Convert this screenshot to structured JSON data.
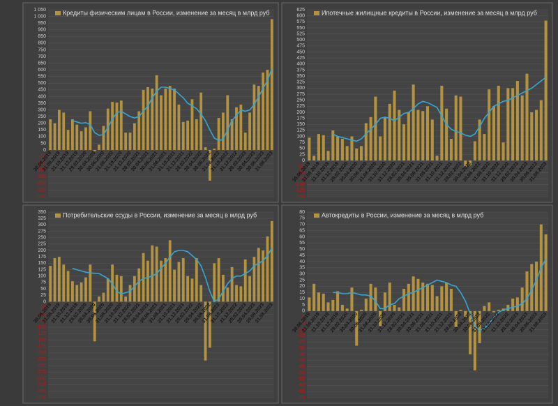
{
  "chart_data": [
    {
      "type": "bar",
      "categories": [
        "30.06.2019",
        null,
        "31.08.2019",
        null,
        "31.10.2019",
        null,
        "31.12.2019",
        null,
        "29.02.2020",
        null,
        "30.04.2020",
        null,
        "30.06.2020",
        null,
        "31.08.2020",
        null,
        "31.10.2020",
        null,
        "31.12.2020",
        null,
        "28.02.2021",
        null,
        "30.04.2021",
        null,
        "30.06.2021",
        null,
        "31.08.2021",
        null,
        "31.10.2021",
        null,
        "31.12.2021",
        null,
        "28.02.2022",
        null,
        "30.04.2022",
        null,
        "30.06.2022",
        null,
        "31.08.2022",
        null,
        "31.10.2022",
        null,
        "31.12.2022",
        null,
        "28.02.2023",
        null,
        "30.04.2023",
        null,
        "30.06.2023",
        null,
        "31.08.2023"
      ],
      "series": [
        {
          "name": "Кредиты физическим лицам  в России, изменение за месяц в млрд руб",
          "color": "#b39240",
          "values": [
            230,
            200,
            300,
            280,
            150,
            230,
            190,
            140,
            170,
            290,
            -10,
            40,
            180,
            310,
            360,
            355,
            370,
            130,
            130,
            200,
            290,
            450,
            470,
            460,
            560,
            410,
            460,
            480,
            460,
            340,
            210,
            220,
            380,
            230,
            430,
            20,
            -230,
            10,
            240,
            280,
            410,
            230,
            320,
            340,
            130,
            280,
            490,
            480,
            580,
            600,
            980
          ]
        }
      ],
      "trend": {
        "color": "#35a7d6",
        "values": [
          null,
          null,
          null,
          null,
          null,
          220,
          210,
          200,
          205,
          190,
          130,
          110,
          115,
          170,
          230,
          280,
          290,
          270,
          250,
          240,
          250,
          290,
          330,
          390,
          440,
          470,
          470,
          460,
          450,
          420,
          390,
          350,
          330,
          310,
          270,
          220,
          150,
          90,
          70,
          80,
          150,
          220,
          260,
          300,
          290,
          300,
          340,
          400,
          460,
          520,
          610
        ]
      },
      "ylim": [
        -350,
        1050
      ],
      "yticks": [
        -350,
        -300,
        -250,
        -200,
        -150,
        -100,
        -50,
        0,
        50,
        100,
        150,
        200,
        250,
        300,
        350,
        400,
        450,
        500,
        550,
        600,
        650,
        700,
        750,
        800,
        850,
        900,
        950,
        {
          "value": 1000,
          "label": "1 000"
        },
        {
          "value": 1050,
          "label": "1 050"
        }
      ]
    },
    {
      "type": "bar",
      "categories": [
        "30.06.2019",
        null,
        "31.08.2019",
        null,
        "31.10.2019",
        null,
        "31.12.2019",
        null,
        "29.02.2020",
        null,
        "30.04.2020",
        null,
        "30.06.2020",
        null,
        "31.08.2020",
        null,
        "31.10.2020",
        null,
        "31.12.2020",
        null,
        "28.02.2021",
        null,
        "30.04.2021",
        null,
        "30.06.2021",
        null,
        "31.08.2021",
        null,
        "31.10.2021",
        null,
        "31.12.2021",
        null,
        "28.02.2022",
        null,
        "30.04.2022",
        null,
        "30.06.2022",
        null,
        "31.08.2022",
        null,
        "31.10.2022",
        null,
        "31.12.2022",
        null,
        "28.02.2023",
        null,
        "30.04.2023",
        null,
        "30.06.2023",
        null,
        "31.08.2023"
      ],
      "series": [
        {
          "name": "Ипотечные жилищные кредиты в России, изменение за месяц в млрд руб",
          "color": "#b39240",
          "values": [
            95,
            20,
            110,
            105,
            40,
            125,
            100,
            90,
            60,
            100,
            50,
            60,
            155,
            180,
            265,
            100,
            180,
            235,
            290,
            210,
            150,
            200,
            315,
            210,
            205,
            225,
            170,
            20,
            310,
            215,
            90,
            270,
            265,
            -25,
            -20,
            80,
            170,
            110,
            295,
            225,
            310,
            75,
            300,
            300,
            330,
            270,
            360,
            200,
            210,
            250,
            580
          ]
        }
      ],
      "trend": {
        "color": "#35a7d6",
        "values": [
          null,
          null,
          null,
          null,
          null,
          110,
          100,
          95,
          90,
          85,
          80,
          90,
          110,
          130,
          150,
          175,
          180,
          175,
          165,
          180,
          195,
          200,
          215,
          235,
          245,
          240,
          230,
          220,
          185,
          150,
          130,
          120,
          115,
          105,
          100,
          110,
          140,
          175,
          200,
          225,
          235,
          245,
          250,
          260,
          270,
          280,
          290,
          300,
          315,
          330,
          345
        ]
      },
      "ylim": [
        -150,
        625
      ],
      "yticks": [
        -150,
        -125,
        -100,
        -75,
        -50,
        -25,
        0,
        25,
        50,
        75,
        100,
        125,
        150,
        175,
        200,
        225,
        250,
        275,
        300,
        325,
        350,
        375,
        400,
        425,
        450,
        475,
        500,
        525,
        550,
        575,
        600,
        625
      ]
    },
    {
      "type": "bar",
      "categories": [
        "30.06.2019",
        null,
        "31.08.2019",
        null,
        "31.10.2019",
        null,
        "31.12.2019",
        null,
        "29.02.2020",
        null,
        "30.04.2020",
        null,
        "30.06.2020",
        null,
        "31.08.2020",
        null,
        "31.10.2020",
        null,
        "31.12.2020",
        null,
        "28.02.2021",
        null,
        "30.04.2021",
        null,
        "30.06.2021",
        null,
        "31.08.2021",
        null,
        "31.10.2021",
        null,
        "31.12.2021",
        null,
        "28.02.2022",
        null,
        "30.04.2022",
        null,
        "30.06.2022",
        null,
        "31.08.2022",
        null,
        "31.10.2022",
        null,
        "31.12.2022",
        null,
        "28.02.2023",
        null,
        "30.04.2023",
        null,
        "30.06.2023",
        null,
        "31.08.2023"
      ],
      "series": [
        {
          "name": "Потребительские ссуды в России, изменение за месяц в млрд руб",
          "color": "#b39240",
          "values": [
            140,
            170,
            175,
            145,
            120,
            80,
            65,
            75,
            95,
            145,
            -155,
            20,
            35,
            90,
            145,
            105,
            100,
            20,
            65,
            100,
            130,
            190,
            160,
            220,
            215,
            160,
            170,
            240,
            125,
            155,
            170,
            100,
            90,
            170,
            65,
            -230,
            -180,
            150,
            170,
            105,
            55,
            135,
            65,
            60,
            165,
            100,
            175,
            210,
            200,
            255,
            315
          ]
        }
      ],
      "trend": {
        "color": "#35a7d6",
        "values": [
          null,
          null,
          null,
          null,
          null,
          130,
          125,
          120,
          115,
          112,
          111,
          110,
          100,
          90,
          70,
          40,
          30,
          35,
          40,
          60,
          80,
          90,
          95,
          100,
          110,
          130,
          150,
          175,
          195,
          200,
          200,
          195,
          180,
          165,
          140,
          95,
          40,
          0,
          10,
          40,
          70,
          90,
          100,
          100,
          110,
          120,
          140,
          150,
          160,
          180,
          210
        ]
      },
      "ylim": [
        -375,
        350
      ],
      "yticks": [
        -375,
        -350,
        -325,
        -300,
        -275,
        -250,
        -225,
        -200,
        -175,
        -150,
        -125,
        -100,
        -75,
        -50,
        -25,
        0,
        25,
        50,
        75,
        100,
        125,
        150,
        175,
        200,
        225,
        250,
        275,
        300,
        325,
        350
      ]
    },
    {
      "type": "bar",
      "categories": [
        "30.06.2019",
        null,
        "31.08.2019",
        null,
        "31.10.2019",
        null,
        "31.12.2019",
        null,
        "29.02.2020",
        null,
        "30.04.2020",
        null,
        "30.06.2020",
        null,
        "31.08.2020",
        null,
        "31.10.2020",
        null,
        "31.12.2020",
        null,
        "28.02.2021",
        null,
        "30.04.2021",
        null,
        "30.06.2021",
        null,
        "31.08.2021",
        null,
        "31.10.2021",
        null,
        "31.12.2021",
        null,
        "28.02.2022",
        null,
        "30.04.2022",
        null,
        "30.06.2022",
        null,
        "31.08.2022",
        null,
        "31.10.2022",
        null,
        "31.12.2022",
        null,
        "28.02.2023",
        null,
        "30.04.2023",
        null,
        "30.06.2023",
        null,
        "31.08.2023"
      ],
      "series": [
        {
          "name": "Автокредиты в России, изменение за месяц в млрд руб",
          "color": "#b39240",
          "values": [
            11,
            22,
            15,
            14,
            7,
            9,
            16,
            5,
            2,
            19,
            -28,
            1,
            10,
            22,
            19,
            -12,
            15,
            23,
            5,
            3,
            18,
            22,
            28,
            26,
            23,
            22,
            21,
            12,
            20,
            23,
            18,
            -13,
            1,
            -5,
            -35,
            -48,
            -26,
            4,
            7,
            -1,
            1,
            2,
            5,
            10,
            11,
            19,
            32,
            38,
            40,
            70,
            62
          ]
        }
      ],
      "trend": {
        "color": "#35a7d6",
        "values": [
          null,
          null,
          null,
          null,
          null,
          15,
          15,
          14,
          14,
          15,
          14,
          13,
          13,
          12,
          8,
          2,
          2,
          5,
          6,
          10,
          12,
          14,
          15,
          17,
          19,
          21,
          23,
          25,
          24,
          23,
          21,
          20,
          15,
          8,
          -2,
          -12,
          -16,
          -14,
          -10,
          -5,
          -1,
          1,
          2,
          3,
          4,
          6,
          10,
          17,
          25,
          35,
          42
        ]
      },
      "ylim": [
        -70,
        80
      ],
      "yticks": [
        -70,
        -65,
        -60,
        -55,
        -50,
        -45,
        -40,
        -35,
        -30,
        -25,
        -20,
        -15,
        -10,
        -5,
        0,
        5,
        10,
        15,
        20,
        25,
        30,
        35,
        40,
        45,
        50,
        55,
        60,
        65,
        70,
        75,
        80
      ]
    }
  ]
}
